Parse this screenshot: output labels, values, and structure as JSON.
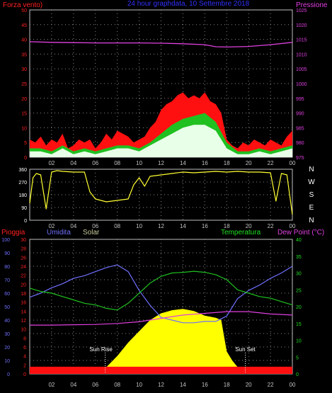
{
  "chart_data": [
    {
      "type": "line",
      "panel": "wind_pressure",
      "title": "24 hour graphdata, 10 Settembre 2018",
      "left_label": "Forza vento)",
      "right_label": "Pressione",
      "ylim_left": [
        0,
        50
      ],
      "ylim_right": [
        975,
        1025
      ],
      "left_ticks": [
        "0",
        "5",
        "10",
        "15",
        "20",
        "25",
        "30",
        "35",
        "40",
        "45",
        "50"
      ],
      "right_ticks": [
        "975",
        "980",
        "985",
        "990",
        "995",
        "1000",
        "1005",
        "1010",
        "1015",
        "1020",
        "1025"
      ],
      "x_ticks": [
        "02",
        "04",
        "06",
        "08",
        "10",
        "12",
        "14",
        "16",
        "18",
        "20",
        "22",
        "00"
      ],
      "x_hours": [
        2,
        4,
        6,
        8,
        10,
        12,
        14,
        16,
        18,
        20,
        22,
        24
      ],
      "grid": true,
      "series": [
        {
          "key": "gust",
          "color": "#ff1010",
          "x": [
            0,
            0.5,
            1,
            1.5,
            2,
            2.5,
            3,
            3.5,
            4,
            4.5,
            5,
            5.5,
            6,
            6.5,
            7,
            7.5,
            8,
            8.5,
            9,
            9.5,
            10,
            10.5,
            11,
            11.5,
            12,
            12.5,
            13,
            13.5,
            14,
            14.5,
            15,
            15.5,
            16,
            16.5,
            17,
            17.5,
            18,
            18.5,
            19,
            19.5,
            20,
            20.5,
            21,
            21.5,
            22,
            22.5,
            23,
            23.5,
            24
          ],
          "values": [
            6,
            5,
            7,
            4,
            6,
            5,
            8,
            3,
            4,
            6,
            5,
            6,
            3,
            5,
            8,
            6,
            9,
            8,
            7,
            5,
            6,
            7,
            10,
            12,
            16,
            18,
            19,
            21,
            22,
            20,
            21,
            20,
            22,
            19,
            18,
            15,
            6,
            4,
            3,
            5,
            4,
            6,
            5,
            4,
            6,
            5,
            4,
            7,
            9
          ]
        },
        {
          "key": "avg",
          "color": "#20c020",
          "x": [
            0,
            1,
            2,
            3,
            4,
            5,
            6,
            7,
            8,
            9,
            10,
            11,
            12,
            13,
            14,
            15,
            16,
            17,
            18,
            19,
            20,
            21,
            22,
            23,
            24
          ],
          "values": [
            3,
            3,
            2,
            4,
            2,
            3,
            2,
            3,
            4,
            4,
            3,
            5,
            8,
            11,
            13,
            14,
            15,
            12,
            5,
            2,
            2,
            3,
            2,
            3,
            4
          ]
        },
        {
          "key": "speed",
          "color": "#e8ffe8",
          "x": [
            0,
            1,
            2,
            3,
            4,
            5,
            6,
            7,
            8,
            9,
            10,
            11,
            12,
            13,
            14,
            15,
            16,
            17,
            18,
            19,
            20,
            21,
            22,
            23,
            24
          ],
          "values": [
            2,
            2,
            1,
            3,
            1,
            2,
            1,
            2,
            3,
            3,
            2,
            4,
            6,
            8,
            10,
            11,
            11,
            9,
            3,
            1,
            1,
            2,
            1,
            2,
            3
          ]
        },
        {
          "key": "pressione",
          "name": "Pressione",
          "axis": "right",
          "color": "#e040e0",
          "x": [
            0,
            2,
            4,
            6,
            8,
            10,
            12,
            14,
            16,
            17,
            18,
            20,
            22,
            24
          ],
          "values": [
            1014.2,
            1014.0,
            1013.9,
            1013.8,
            1013.8,
            1013.8,
            1013.7,
            1013.5,
            1013.2,
            1012.5,
            1012.4,
            1012.6,
            1013.2,
            1014.0
          ]
        }
      ]
    },
    {
      "type": "line",
      "panel": "wind_direction",
      "ylim": [
        0,
        360
      ],
      "left_ticks": [
        "0",
        "90",
        "180",
        "270",
        "360"
      ],
      "right_ticks": [
        "N",
        "W",
        "S",
        "E",
        "N"
      ],
      "x_ticks": [
        "02",
        "04",
        "06",
        "08",
        "10",
        "12",
        "14",
        "16",
        "18",
        "20",
        "22",
        "00"
      ],
      "x_hours": [
        2,
        4,
        6,
        8,
        10,
        12,
        14,
        16,
        18,
        20,
        22,
        24
      ],
      "grid": true,
      "series": [
        {
          "key": "direction",
          "color": "#ffff30",
          "x": [
            0,
            0.3,
            0.6,
            1,
            1.5,
            2,
            2.5,
            3,
            4,
            5,
            5.5,
            6,
            7,
            8,
            9,
            9.5,
            10,
            10.5,
            11,
            12,
            13,
            14,
            15,
            16,
            17,
            18,
            19,
            20,
            21,
            22,
            22.5,
            23,
            23.5,
            24
          ],
          "values": [
            120,
            300,
            330,
            320,
            80,
            340,
            350,
            345,
            340,
            340,
            200,
            150,
            130,
            140,
            150,
            250,
            300,
            240,
            310,
            320,
            330,
            340,
            335,
            340,
            345,
            340,
            345,
            340,
            340,
            335,
            135,
            330,
            320,
            40
          ]
        }
      ]
    },
    {
      "type": "line",
      "panel": "temp_humidity_solar",
      "labels": {
        "pioggia": "Pioggia",
        "umidita": "Umidita",
        "solar": "Solar",
        "temperatura": "Temperatura",
        "dewpoint": "Dew Point (°C)",
        "sunrise": "Sun Rise",
        "sunset": "Sun Set"
      },
      "sunrise_hour": 6.9,
      "sunset_hour": 19.7,
      "ylim_humidity": [
        0,
        100
      ],
      "ylim_rain": [
        0,
        30
      ],
      "ylim_temp": [
        0,
        40
      ],
      "humidity_ticks": [
        "0",
        "10",
        "20",
        "30",
        "40",
        "50",
        "60",
        "70",
        "80",
        "90",
        "100"
      ],
      "rain_ticks": [
        "0",
        "2",
        "4",
        "6",
        "8",
        "10",
        "12",
        "14",
        "16",
        "18",
        "20",
        "22",
        "24",
        "26",
        "28",
        "30"
      ],
      "temp_ticks": [
        "0",
        "5",
        "10",
        "15",
        "20",
        "25",
        "30",
        "35",
        "40"
      ],
      "x_ticks": [
        "02",
        "04",
        "06",
        "08",
        "10",
        "12",
        "14",
        "16",
        "18",
        "20",
        "22",
        "00"
      ],
      "x_hours": [
        2,
        4,
        6,
        8,
        10,
        12,
        14,
        16,
        18,
        20,
        22,
        24
      ],
      "grid": true,
      "series": [
        {
          "key": "solar",
          "name": "Solar",
          "color": "#ffff00",
          "fill": true,
          "axis": "rain",
          "x": [
            0,
            6,
            6.5,
            7,
            8,
            9,
            10,
            11,
            12,
            13,
            14,
            15,
            16,
            17,
            17.5,
            18,
            18.5,
            19,
            19.5,
            20,
            24
          ],
          "values": [
            0,
            0,
            0.5,
            1.5,
            4,
            7,
            9.5,
            12,
            13.5,
            14.2,
            14.5,
            14,
            13,
            12.5,
            12,
            5,
            3,
            1.5,
            0.5,
            0,
            0
          ]
        },
        {
          "key": "rain_base",
          "color": "#ff1010",
          "fill": true,
          "axis": "rain",
          "x": [
            0,
            24
          ],
          "values": [
            1.6,
            1.6
          ]
        },
        {
          "key": "humidity",
          "name": "Umidita",
          "color": "#7070ff",
          "axis": "humidity",
          "x": [
            0,
            1,
            2,
            3,
            4,
            5,
            6,
            7,
            8,
            9,
            10,
            11,
            12,
            13,
            14,
            15,
            16,
            17,
            18,
            19,
            20,
            21,
            22,
            23,
            24
          ],
          "values": [
            57,
            60,
            64,
            67,
            71,
            73,
            76,
            79,
            81,
            76,
            62,
            51,
            42,
            40,
            38,
            38,
            39,
            39,
            43,
            56,
            62,
            66,
            71,
            75,
            80
          ]
        },
        {
          "key": "temperatura",
          "name": "Temperatura",
          "color": "#20c020",
          "axis": "temp",
          "x": [
            0,
            1,
            2,
            3,
            4,
            5,
            6,
            7,
            8,
            9,
            10,
            11,
            12,
            13,
            14,
            15,
            16,
            17,
            18,
            19,
            20,
            21,
            22,
            23,
            24
          ],
          "values": [
            25.5,
            24.5,
            24,
            23,
            22,
            21,
            20.5,
            19.5,
            19,
            21,
            24,
            27,
            29,
            30,
            30.2,
            30.5,
            30.2,
            29.5,
            28,
            25,
            24,
            23,
            22.5,
            21.5,
            20.5
          ]
        },
        {
          "key": "dewpoint",
          "name": "Dew Point (°C)",
          "color": "#e040e0",
          "axis": "temp",
          "x": [
            0,
            2,
            4,
            6,
            8,
            10,
            12,
            14,
            16,
            18,
            20,
            22,
            24
          ],
          "values": [
            14.5,
            14.5,
            14.6,
            14.7,
            15,
            15.5,
            16.5,
            17.5,
            18,
            18.5,
            18.5,
            17.8,
            17.5
          ]
        }
      ]
    }
  ]
}
